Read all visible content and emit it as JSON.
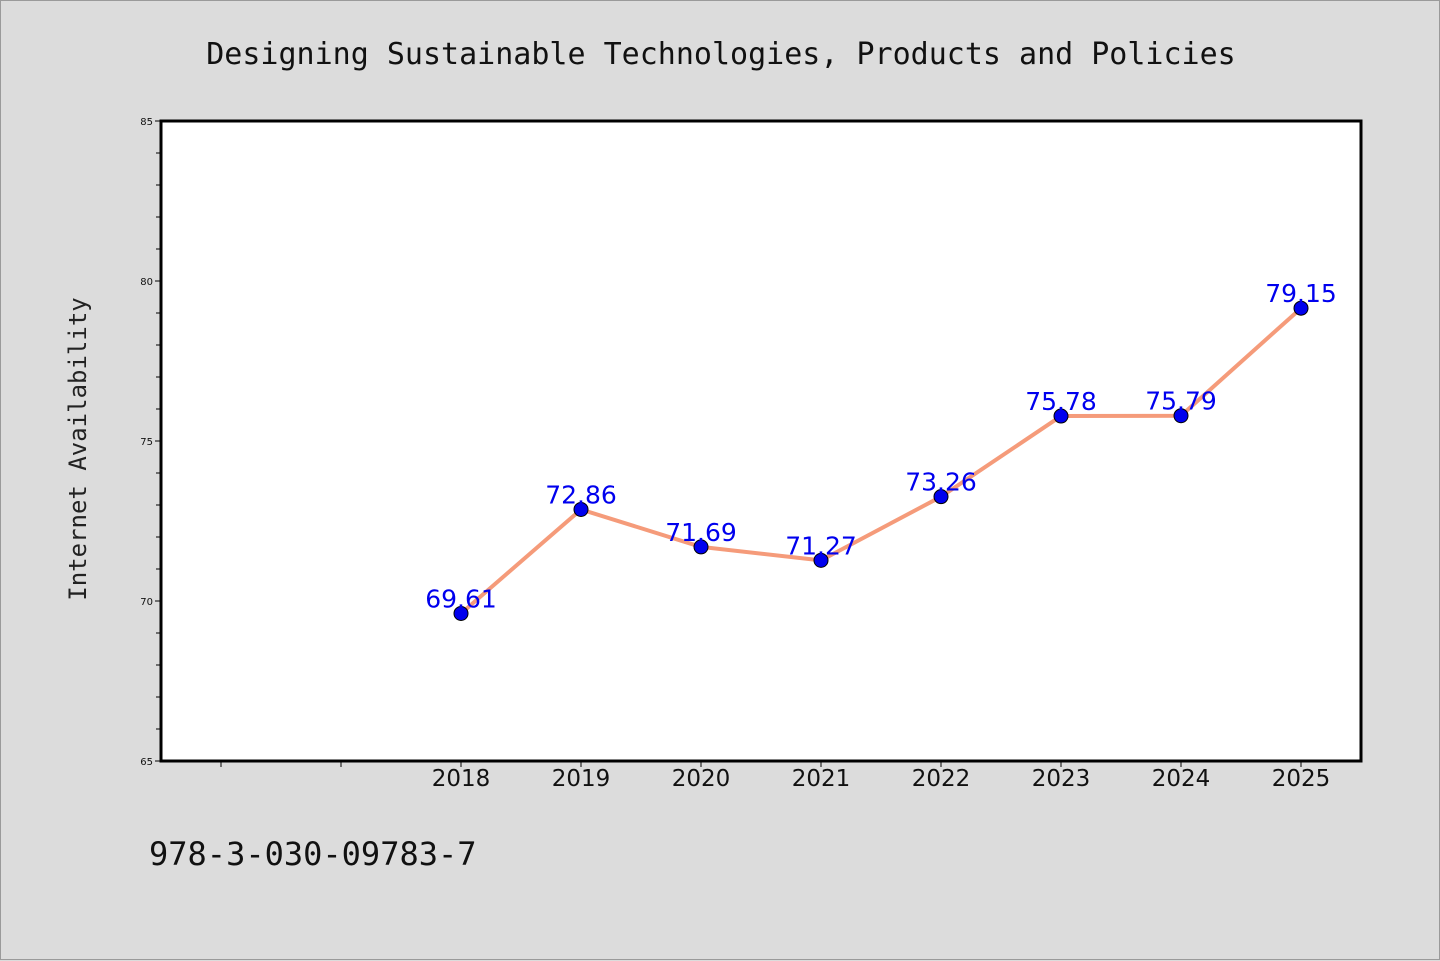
{
  "chart_data": {
    "type": "line",
    "title": "Designing Sustainable Technologies, Products and Policies",
    "xlabel": "",
    "ylabel": "Internet Availability",
    "categories": [
      "2018",
      "2019",
      "2020",
      "2021",
      "2022",
      "2023",
      "2024",
      "2025"
    ],
    "series": [
      {
        "values": [
          69.61,
          72.86,
          71.69,
          71.27,
          73.26,
          75.78,
          75.79,
          79.15
        ]
      }
    ],
    "data_labels": [
      "69.61",
      "72.86",
      "71.69",
      "71.27",
      "73.26",
      "75.78",
      "75.79",
      "79.15"
    ],
    "ylim": [
      65,
      85
    ],
    "yticks": [
      "65",
      "70",
      "75",
      "80",
      "85"
    ],
    "grid": false,
    "line_color": "#f59b7a",
    "marker_color": "#0000ee",
    "label_color": "#0000ee"
  },
  "footer": {
    "text": "978-3-030-09783-7"
  }
}
